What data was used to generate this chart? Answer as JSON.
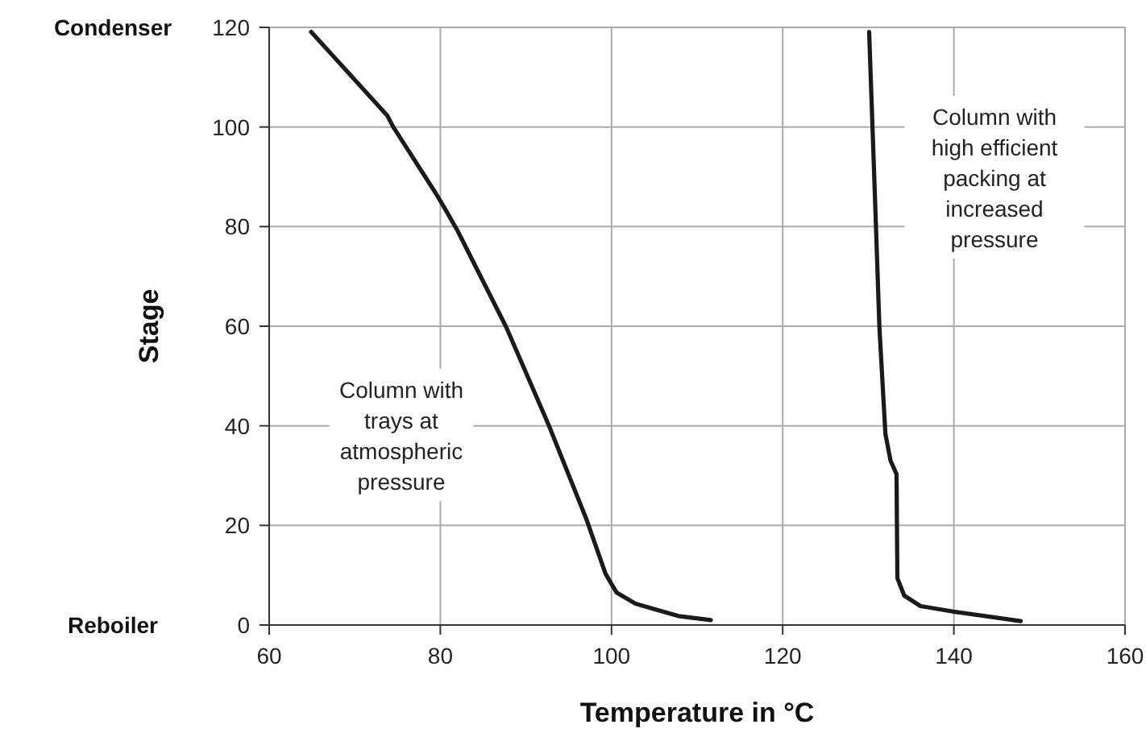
{
  "chart_data": {
    "type": "line",
    "xlabel": "Temperature in °C",
    "ylabel": "Stage",
    "xlim": [
      60,
      160
    ],
    "xticks": [
      60,
      80,
      100,
      120,
      140,
      160
    ],
    "ylim": [
      0,
      120
    ],
    "yticks": [
      0,
      20,
      40,
      60,
      80,
      100,
      120
    ],
    "grid": true,
    "marker": "none",
    "line_style": "solid",
    "series": [
      {
        "color": "#1a1a1a",
        "x": [
          64.9,
          73.8,
          74.5,
          79.5,
          80.4,
          82,
          87.7,
          92.7,
          97.1,
          99.3,
          100.6,
          102.8,
          107.8,
          111.6
        ],
        "values": [
          119.1,
          102.3,
          100,
          86.6,
          84,
          79.2,
          59.8,
          40,
          21.1,
          10.3,
          6.5,
          4.3,
          1.8,
          1
        ]
      },
      {
        "color": "#1a1a1a",
        "x": [
          130.1,
          130.7,
          131.3,
          132,
          132.6,
          133.3,
          133.4,
          134.2,
          136.1,
          139.9,
          147.8
        ],
        "values": [
          119.1,
          89.9,
          59.8,
          38.4,
          33,
          30.3,
          9.4,
          5.9,
          3.8,
          2.7,
          0.8
        ]
      }
    ],
    "annotations": [
      "Column with\ntrays at\natmospheric\npressure",
      "Column with\nhigh efficient\npacking at\nincreased\npressure",
      "Condenser",
      "Reboiler"
    ]
  }
}
